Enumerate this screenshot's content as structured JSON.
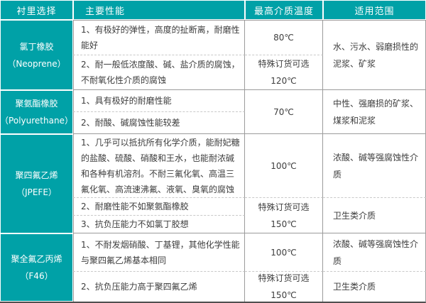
{
  "page": {
    "accent_color": "#00a1a7",
    "body_text_color": "#3d3d3d"
  },
  "table": {
    "headers": {
      "lining": "衬里选择",
      "performance": "主要性能",
      "max_temperature": "最高介质温度",
      "applicable_range": "适用范围"
    },
    "materials": [
      {
        "name": "氯丁橡胶",
        "alias": "（Neoprene）",
        "performances": [
          "1、有极好的弹性，高度的扯断离，耐磨性能好",
          "2、耐一般低浓度酸、碱、盐介质的腐蚀，不耐氧化性介质的腐蚀"
        ],
        "temperatures": [
          {
            "lines": [
              "80℃"
            ]
          },
          {
            "lines": [
              "特殊订货可选",
              "120℃"
            ]
          }
        ],
        "ranges": [
          "水、污水、弱磨损性的泥浆、矿浆"
        ]
      },
      {
        "name": "聚氨酯橡胶",
        "alias": "（Polyurethane）",
        "performances": [
          "1、具有极好的耐磨性能",
          "2、耐酸、碱腐蚀性能较差"
        ],
        "temperatures": [
          {
            "lines": [
              "70℃"
            ]
          }
        ],
        "ranges": [
          "中性、强磨损的矿浆、煤浆和泥浆"
        ]
      },
      {
        "name": "聚四氟乙烯",
        "alias": "（JPEFE）",
        "performances": [
          "1、几乎可以抵抗所有化学介质，能耐妃糖的盐酸、硫酸、硝酸和王水，也能耐浓碱和各种有机溶剂。不耐三氟化氧、高温三氟化氧、高流速沸氟、液氧、臭氧的腐蚀",
          "2、耐磨性能不如聚氨酯橡胶",
          "3、抗负压能力不如氯丁胶想"
        ],
        "temperatures": [
          {
            "lines": [
              "100℃"
            ]
          },
          {
            "lines": [
              "特殊订货可选",
              "150℃"
            ]
          }
        ],
        "ranges": [
          "浓酸、碱等强腐蚀性介质",
          "卫生类介质"
        ]
      },
      {
        "name": "聚全氟乙丙烯",
        "alias": "（F46）",
        "performances": [
          "1、不耐发烟硝酸、丁基锂，其他化学性能与聚四氟乙烯基本相同",
          "2、抗负压能力高于聚四氟乙烯"
        ],
        "temperatures": [
          {
            "lines": [
              "100℃"
            ]
          },
          {
            "lines": [
              "特殊订货可选",
              "150℃"
            ]
          }
        ],
        "ranges": [
          "浓酸、碱等强腐蚀性介质",
          "卫生类介质"
        ]
      }
    ]
  }
}
